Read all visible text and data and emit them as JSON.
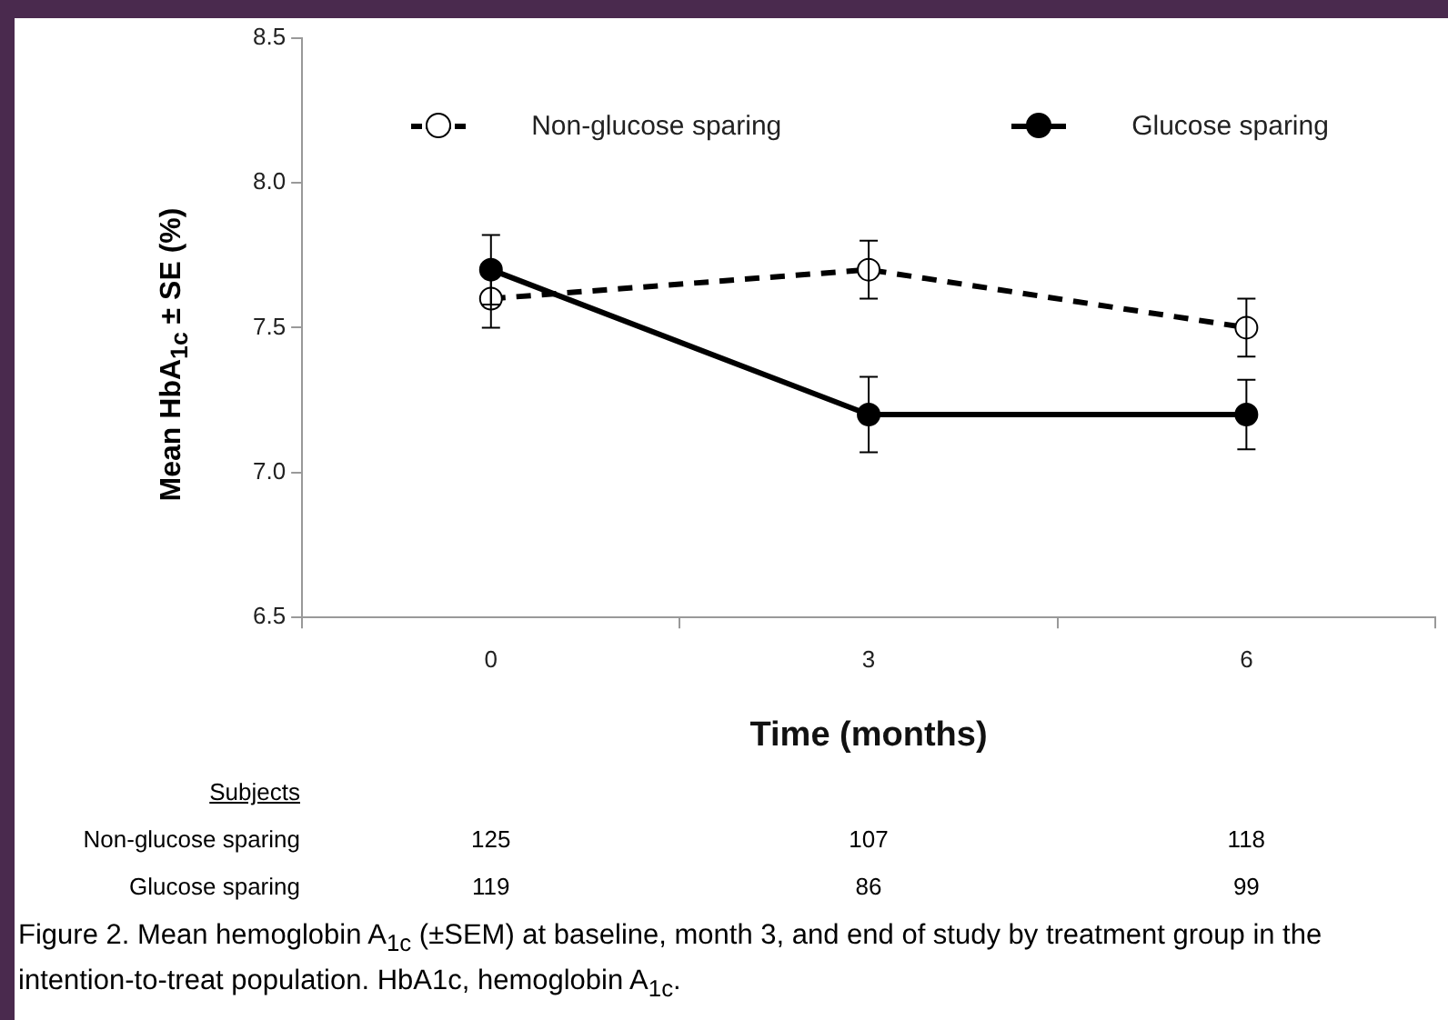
{
  "chart_data": {
    "type": "line",
    "xlabel": "Time (months)",
    "ylabel": "Mean HbA$_{1c}$ ± SE (%)",
    "categories": [
      "0",
      "3",
      "6"
    ],
    "series": [
      {
        "name": "Non-glucose sparing",
        "color": "#000000",
        "values": [
          7.6,
          7.7,
          7.5
        ],
        "errors": [
          0.1,
          0.1,
          0.1
        ],
        "line_style": "dashed",
        "marker": "circle"
      },
      {
        "name": "Glucose sparing",
        "color": "#000000",
        "values": [
          7.7,
          7.2,
          7.2
        ],
        "errors": [
          0.12,
          0.13,
          0.12
        ],
        "line_style": "solid",
        "marker": "circle"
      }
    ],
    "ylim": [
      6.5,
      8.5
    ],
    "yticks": [
      6.5,
      {
        "value": 7,
        "label": "7.0"
      },
      7.5,
      {
        "value": 8,
        "label": "8.0"
      },
      8.5
    ],
    "grid": false,
    "legend": "top",
    "annotations": [
      "Subjects",
      "Non-glucose sparing",
      "125",
      "107",
      "118",
      "Glucose sparing",
      "119",
      "86",
      "99",
      "Figure 2. Mean hemoglobin A$_{1c}$ (±SEM) at baseline, month 3, and end of study by treatment group in the intention-to-treat population. HbA1c, hemoglobin A$_{1c}$."
    ]
  }
}
